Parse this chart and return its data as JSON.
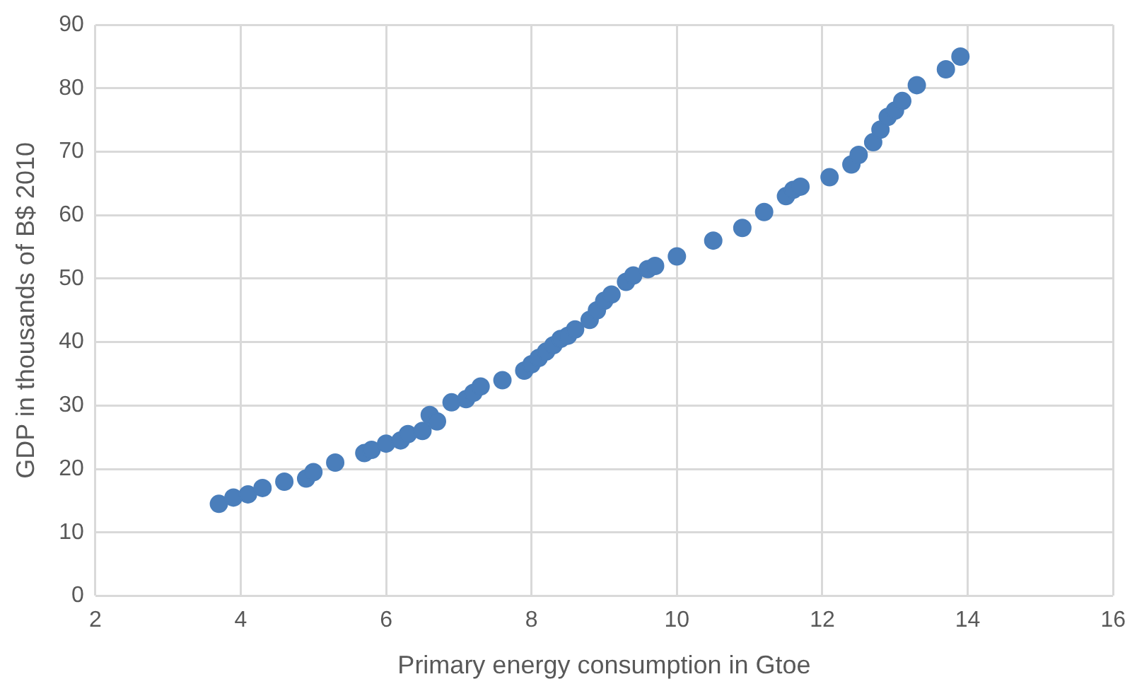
{
  "chart_data": {
    "type": "scatter",
    "xlabel": "Primary energy consumption in Gtoe",
    "ylabel": "GDP in thousands of B$ 2010",
    "x": [
      3.7,
      3.9,
      4.1,
      4.3,
      4.6,
      4.9,
      5.0,
      5.3,
      5.7,
      5.8,
      6.0,
      6.2,
      6.3,
      6.5,
      6.6,
      6.7,
      6.9,
      7.1,
      7.2,
      7.3,
      7.6,
      7.9,
      8.0,
      8.1,
      8.2,
      8.3,
      8.4,
      8.5,
      8.6,
      8.8,
      8.9,
      9.0,
      9.1,
      9.3,
      9.4,
      9.6,
      9.7,
      10.0,
      10.5,
      10.9,
      11.2,
      11.5,
      11.6,
      11.7,
      12.1,
      12.4,
      12.5,
      12.7,
      12.8,
      12.9,
      13.0,
      13.1,
      13.3,
      13.7,
      13.9
    ],
    "series": [
      {
        "color": "#4a7ebb",
        "values": [
          14.5,
          15.5,
          16,
          17,
          18,
          18.5,
          19.5,
          21,
          22.5,
          23,
          24,
          24.5,
          25.5,
          26,
          28.5,
          27.5,
          30.5,
          31,
          32,
          33,
          34,
          35.5,
          36.5,
          37.5,
          38.5,
          39.5,
          40.5,
          41,
          42,
          43.5,
          45,
          46.5,
          47.5,
          49.5,
          50.5,
          51.5,
          52,
          53.5,
          56,
          58,
          60.5,
          63,
          64,
          64.5,
          66,
          68,
          69.5,
          71.5,
          73.5,
          75.5,
          76.5,
          78,
          80.5,
          83,
          85
        ]
      }
    ],
    "xlim": [
      2,
      16
    ],
    "xticks": [
      2,
      4,
      6,
      8,
      10,
      12,
      14,
      16
    ],
    "ylim": [
      0,
      90
    ],
    "yticks": [
      0,
      10,
      20,
      30,
      40,
      50,
      60,
      70,
      80,
      90
    ],
    "grid": true,
    "legend": false,
    "marker": "circle"
  }
}
